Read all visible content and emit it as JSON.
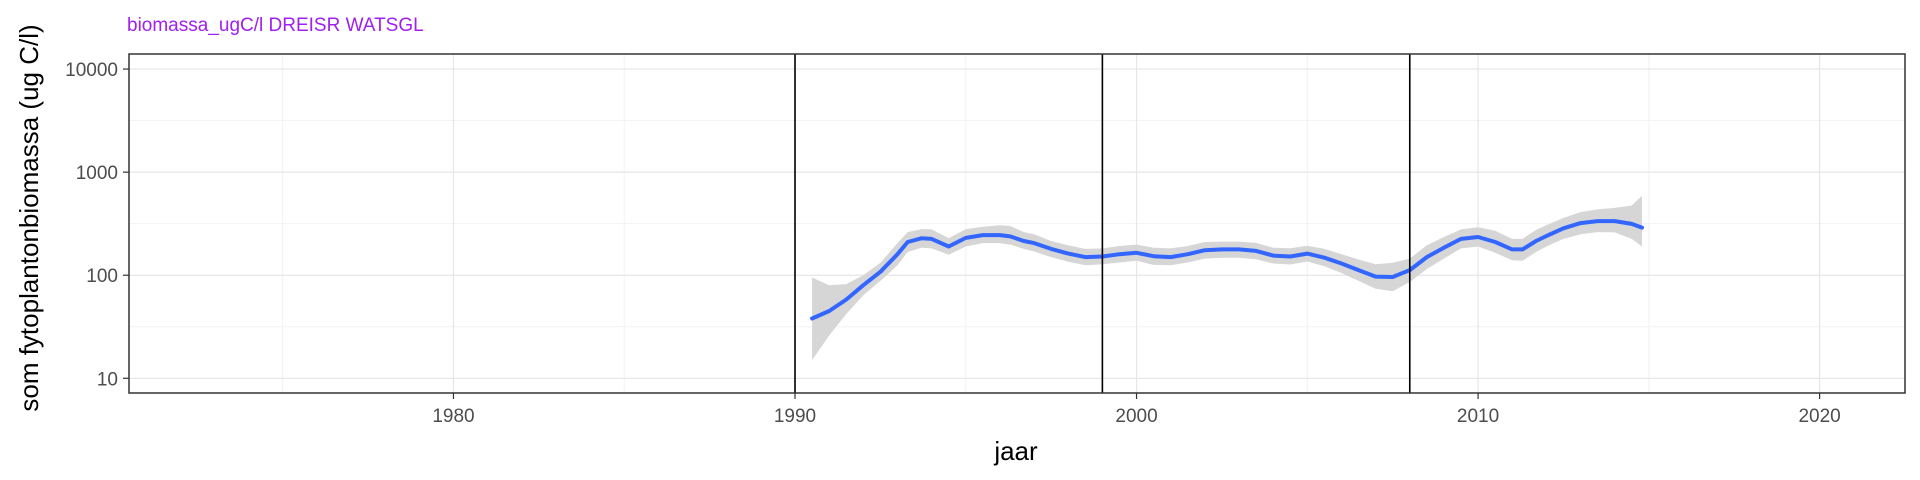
{
  "chart_data": {
    "type": "line",
    "title": "biomassa_ugC/l DREISR WATSGL",
    "xlabel": "jaar",
    "ylabel": "som fytoplantonbiomassa (ug C/l)",
    "xlim": [
      1970.5,
      2022.5
    ],
    "ylim": [
      7.2,
      14000
    ],
    "y_scale": "log10",
    "x_ticks": [
      1980,
      1990,
      2000,
      2010,
      2020
    ],
    "x_tick_labels": [
      "1980",
      "1990",
      "2000",
      "2010",
      "2020"
    ],
    "y_ticks": [
      10,
      100,
      1000,
      10000
    ],
    "y_tick_labels": [
      "10",
      "100",
      "1000",
      "10000"
    ],
    "grid": true,
    "vlines": [
      1990,
      1999,
      2008
    ],
    "series": [
      {
        "type": "smooth",
        "x": [
          1990.5,
          1991.0,
          1991.5,
          1992.0,
          1992.5,
          1993.0,
          1993.3,
          1993.7,
          1994.0,
          1994.5,
          1995.0,
          1995.5,
          1996.0,
          1996.3,
          1996.7,
          1997.0,
          1997.5,
          1998.0,
          1998.5,
          1999.0,
          1999.5,
          2000.0,
          2000.5,
          2001.0,
          2001.5,
          2002.0,
          2002.5,
          2003.0,
          2003.5,
          2004.0,
          2004.5,
          2005.0,
          2005.5,
          2006.0,
          2006.5,
          2007.0,
          2007.5,
          2008.0,
          2008.5,
          2009.0,
          2009.5,
          2010.0,
          2010.5,
          2011.0,
          2011.3,
          2011.7,
          2012.0,
          2012.5,
          2013.0,
          2013.5,
          2014.0,
          2014.5,
          2014.8
        ],
        "y": [
          38,
          45,
          58,
          80,
          108,
          160,
          210,
          228,
          225,
          190,
          230,
          245,
          245,
          238,
          215,
          205,
          180,
          162,
          150,
          152,
          160,
          165,
          153,
          150,
          160,
          175,
          178,
          178,
          172,
          155,
          152,
          162,
          148,
          130,
          112,
          97,
          96,
          112,
          150,
          185,
          225,
          235,
          210,
          178,
          178,
          215,
          240,
          285,
          320,
          335,
          335,
          315,
          290
        ],
        "lower": [
          15,
          26,
          42,
          64,
          88,
          125,
          168,
          185,
          182,
          158,
          190,
          205,
          205,
          198,
          180,
          170,
          150,
          135,
          125,
          128,
          133,
          138,
          126,
          125,
          133,
          145,
          148,
          148,
          143,
          130,
          127,
          136,
          122,
          105,
          88,
          74,
          70,
          86,
          115,
          145,
          182,
          190,
          165,
          140,
          138,
          168,
          190,
          225,
          250,
          262,
          260,
          225,
          190
        ],
        "upper": [
          95,
          80,
          82,
          100,
          132,
          205,
          262,
          280,
          278,
          228,
          280,
          295,
          305,
          300,
          262,
          250,
          215,
          195,
          180,
          182,
          192,
          198,
          185,
          182,
          192,
          210,
          212,
          212,
          206,
          185,
          183,
          193,
          180,
          160,
          142,
          128,
          132,
          145,
          195,
          235,
          278,
          292,
          270,
          225,
          225,
          275,
          305,
          360,
          410,
          435,
          450,
          475,
          590
        ],
        "color": "#3366FF",
        "band_color": "#d6d6d6"
      }
    ],
    "colors": {
      "title": "#A020F0",
      "line": "#3366FF",
      "band": "#d6d6d6",
      "vline": "#000000",
      "grid_major": "#e6e6e6",
      "grid_minor": "#f2f2f2",
      "panel_border": "#333333"
    }
  }
}
